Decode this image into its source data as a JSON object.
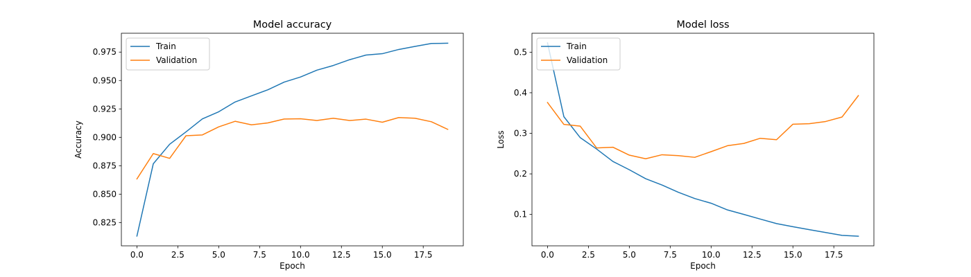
{
  "colors": {
    "train": "#1f77b4",
    "validation": "#ff7f0e",
    "axis": "#000000",
    "legend_border": "#cccccc"
  },
  "chart_data": [
    {
      "type": "line",
      "title": "Model accuracy",
      "xlabel": "Epoch",
      "ylabel": "Accuracy",
      "xlim": [
        -0.95,
        19.95
      ],
      "ylim": [
        0.8045,
        0.9916
      ],
      "xticks": [
        0.0,
        2.5,
        5.0,
        7.5,
        10.0,
        12.5,
        15.0,
        17.5
      ],
      "xtick_labels": [
        "0.0",
        "2.5",
        "5.0",
        "7.5",
        "10.0",
        "12.5",
        "15.0",
        "17.5"
      ],
      "yticks": [
        0.825,
        0.85,
        0.875,
        0.9,
        0.925,
        0.95,
        0.975
      ],
      "ytick_labels": [
        "0.825",
        "0.850",
        "0.875",
        "0.900",
        "0.925",
        "0.950",
        "0.975"
      ],
      "legend_position": "upper-left",
      "x": [
        0,
        1,
        2,
        3,
        4,
        5,
        6,
        7,
        8,
        9,
        10,
        11,
        12,
        13,
        14,
        15,
        16,
        17,
        18,
        19
      ],
      "series": [
        {
          "name": "Train",
          "color_key": "train",
          "values": [
            0.8131,
            0.8767,
            0.8939,
            0.9048,
            0.9162,
            0.9225,
            0.9311,
            0.9365,
            0.9418,
            0.9486,
            0.9531,
            0.9591,
            0.9632,
            0.9683,
            0.9724,
            0.9736,
            0.9773,
            0.98,
            0.9826,
            0.9828
          ]
        },
        {
          "name": "Validation",
          "color_key": "validation",
          "values": [
            0.8634,
            0.8857,
            0.8815,
            0.9014,
            0.9021,
            0.9092,
            0.9141,
            0.911,
            0.9127,
            0.9161,
            0.9163,
            0.9148,
            0.9168,
            0.9148,
            0.916,
            0.9133,
            0.9174,
            0.9168,
            0.9137,
            0.907
          ]
        }
      ]
    },
    {
      "type": "line",
      "title": "Model loss",
      "xlabel": "Epoch",
      "ylabel": "Loss",
      "xlim": [
        -0.95,
        19.95
      ],
      "ylim": [
        0.0226,
        0.5467
      ],
      "xticks": [
        0.0,
        2.5,
        5.0,
        7.5,
        10.0,
        12.5,
        15.0,
        17.5
      ],
      "xtick_labels": [
        "0.0",
        "2.5",
        "5.0",
        "7.5",
        "10.0",
        "12.5",
        "15.0",
        "17.5"
      ],
      "yticks": [
        0.1,
        0.2,
        0.3,
        0.4,
        0.5
      ],
      "ytick_labels": [
        "0.1",
        "0.2",
        "0.3",
        "0.4",
        "0.5"
      ],
      "legend_position": "upper-left",
      "x": [
        0,
        1,
        2,
        3,
        4,
        5,
        6,
        7,
        8,
        9,
        10,
        11,
        12,
        13,
        14,
        15,
        16,
        17,
        18,
        19
      ],
      "series": [
        {
          "name": "Train",
          "color_key": "train",
          "values": [
            0.5229,
            0.341,
            0.2893,
            0.2613,
            0.2306,
            0.2102,
            0.1881,
            0.1725,
            0.1546,
            0.1392,
            0.1276,
            0.1111,
            0.1001,
            0.0886,
            0.0775,
            0.0697,
            0.0625,
            0.0555,
            0.0484,
            0.0464
          ]
        },
        {
          "name": "Validation",
          "color_key": "validation",
          "values": [
            0.3759,
            0.3219,
            0.3177,
            0.264,
            0.2657,
            0.2462,
            0.2373,
            0.2472,
            0.245,
            0.2408,
            0.2548,
            0.2694,
            0.275,
            0.2877,
            0.2842,
            0.3225,
            0.3236,
            0.3291,
            0.3401,
            0.3929
          ]
        }
      ]
    }
  ]
}
